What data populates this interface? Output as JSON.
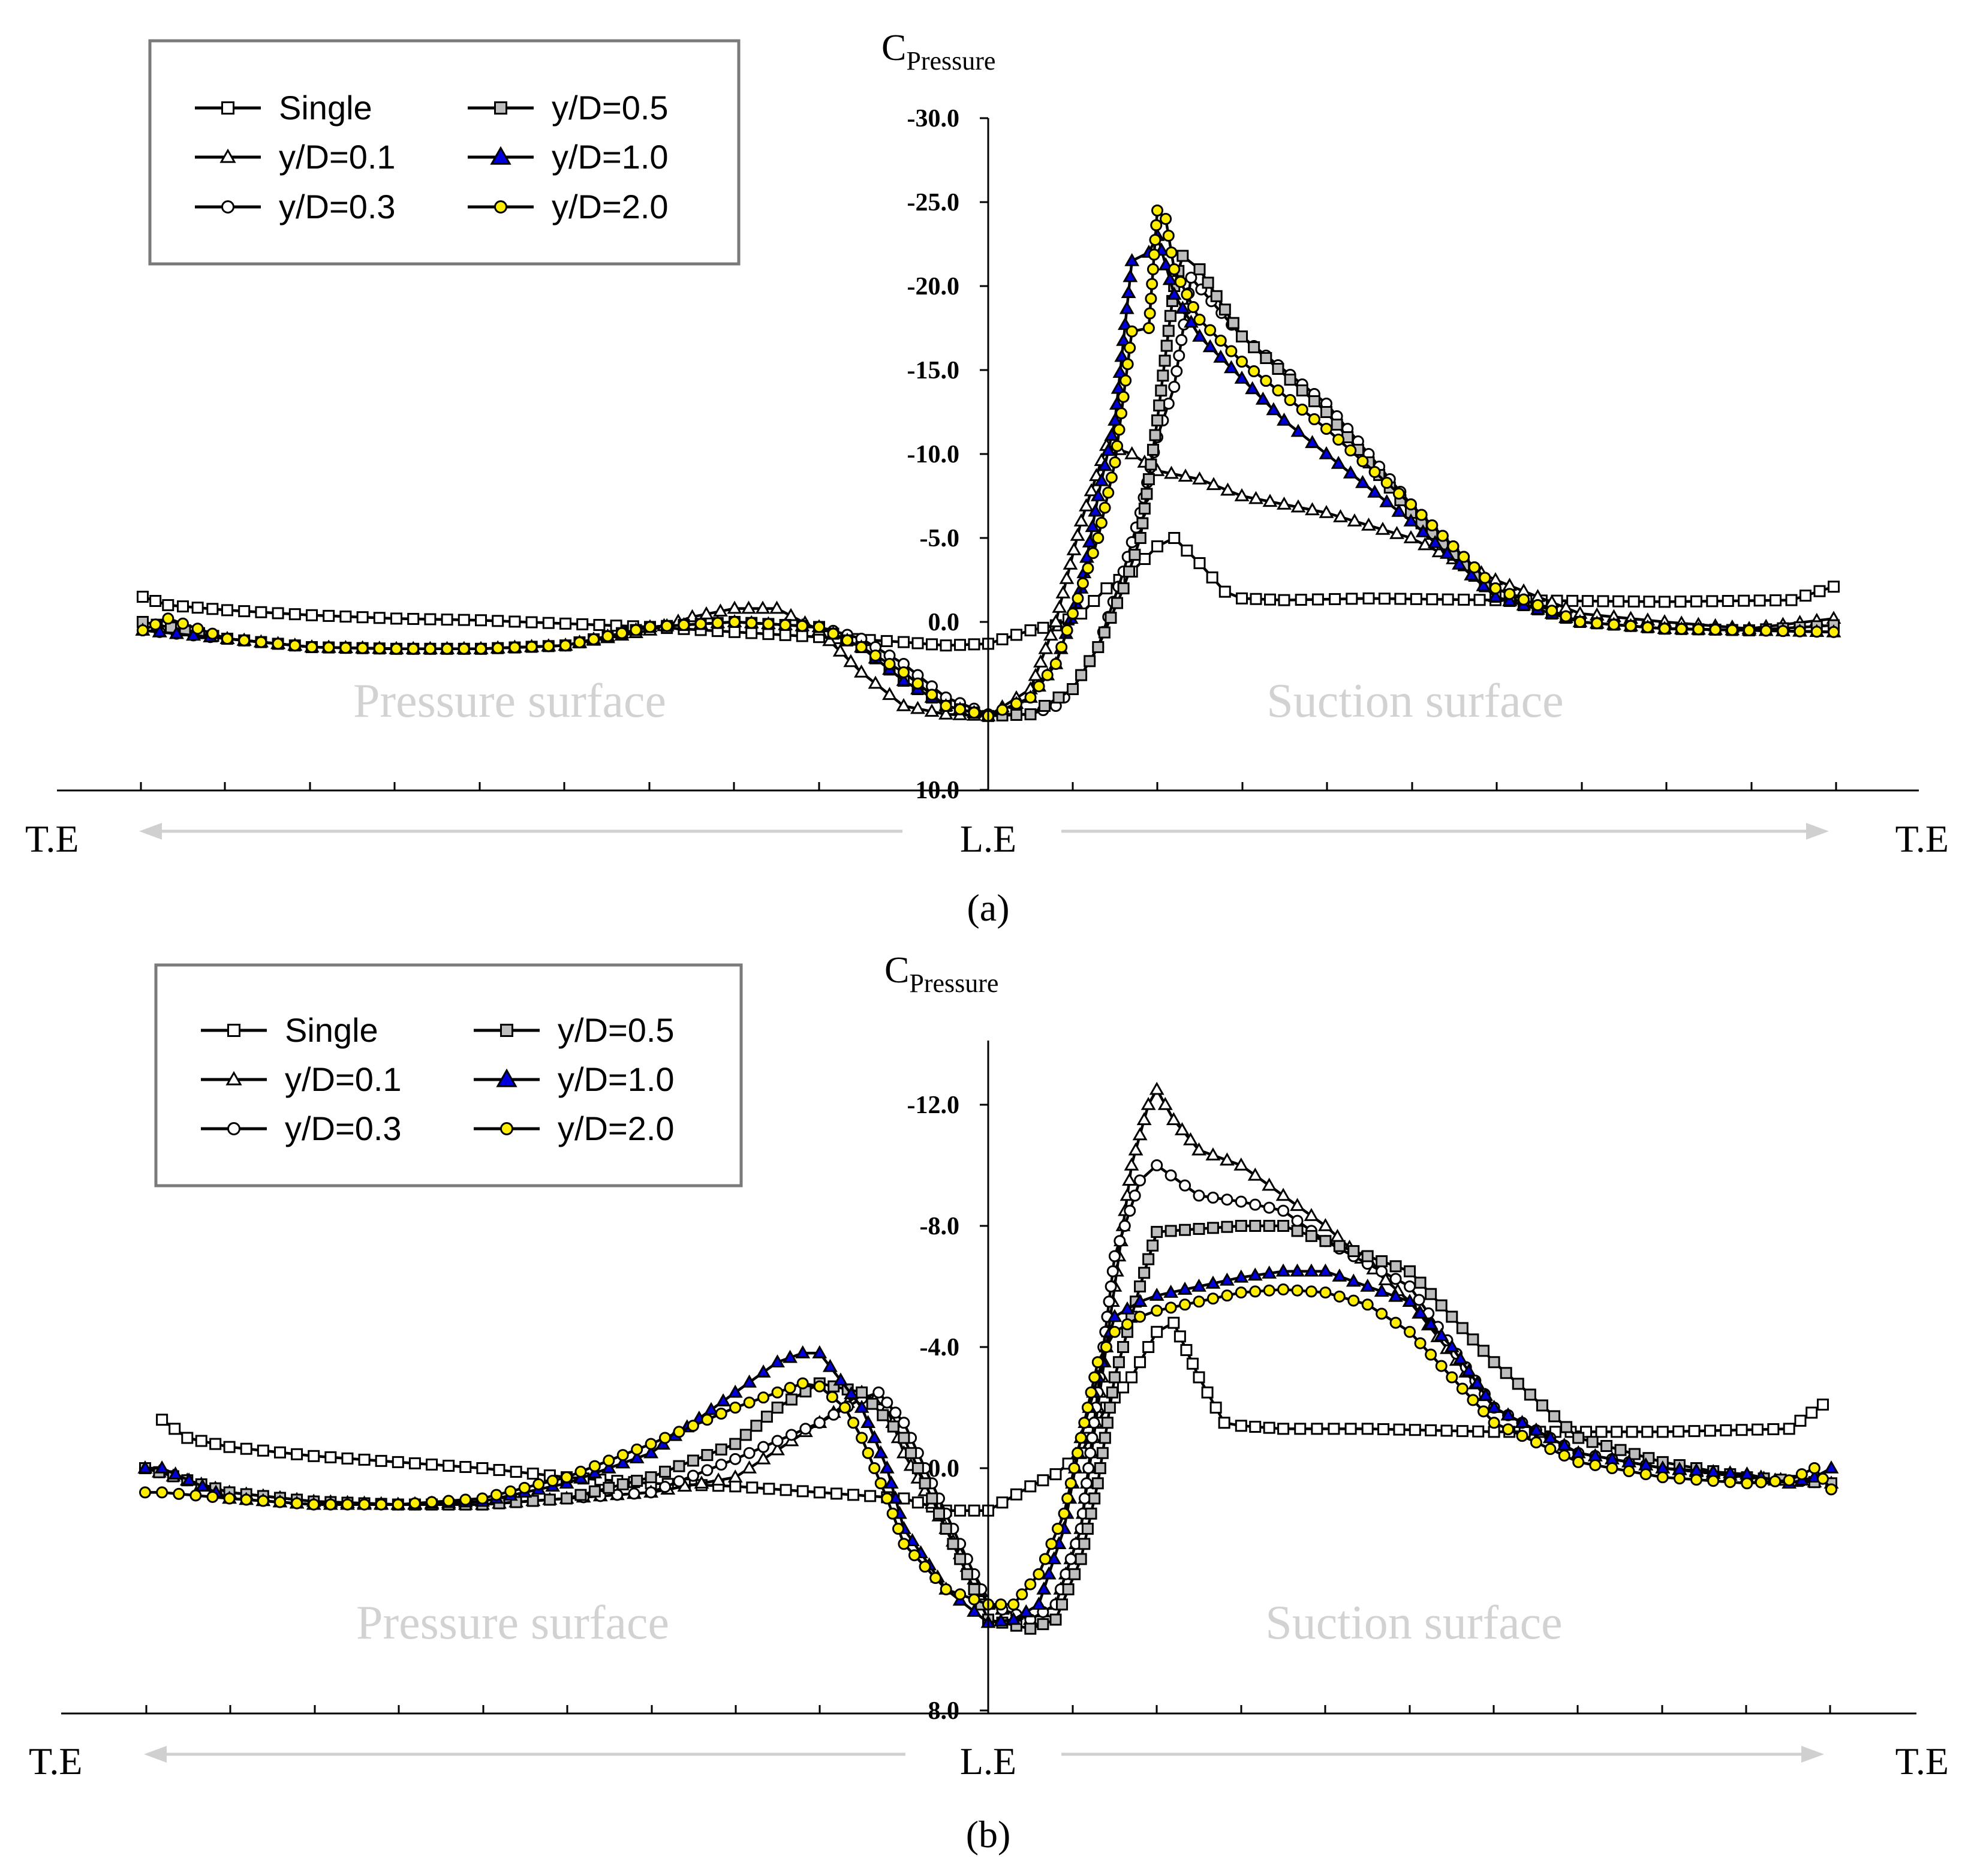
{
  "chart_data": [
    {
      "type": "line",
      "panel_label": "(a)",
      "ylabel": "C",
      "ylabel_sub": "Pressure",
      "y_axis_inverted": true,
      "ylim": [
        -30.0,
        10.0
      ],
      "yticks": [
        -30.0,
        -25.0,
        -20.0,
        -15.0,
        -10.0,
        -5.0,
        0.0,
        10.0
      ],
      "ytick_labels": [
        "-30.0",
        "-25.0",
        "-20.0",
        "-15.0",
        "-10.0",
        "-5.0",
        "0.0",
        "10.0"
      ],
      "xlim": [
        -1.1,
        1.1
      ],
      "x_axis_label_left": "T.E",
      "x_axis_label_center": "L.E",
      "x_axis_label_right": "T.E",
      "region_labels": [
        "Pressure surface",
        "Suction surface"
      ],
      "legend_position": "top-left",
      "series": [
        {
          "name": "Single",
          "marker": "square",
          "fill": "#ffffff",
          "x": [
            -1.0,
            -0.97,
            -0.9,
            -0.8,
            -0.7,
            -0.6,
            -0.5,
            -0.4,
            -0.3,
            -0.2,
            -0.1,
            -0.05,
            0.0,
            0.05,
            0.08,
            0.11,
            0.14,
            0.17,
            0.2,
            0.22,
            0.25,
            0.28,
            0.3,
            0.35,
            0.45,
            0.6,
            0.8,
            0.95,
            1.0
          ],
          "y": [
            -1.5,
            -1.0,
            -0.7,
            -0.4,
            -0.2,
            -0.1,
            0.1,
            0.3,
            0.6,
            0.9,
            1.2,
            1.4,
            1.3,
            0.5,
            0.2,
            -0.5,
            -2.0,
            -3.0,
            -4.5,
            -5.0,
            -3.5,
            -1.8,
            -1.4,
            -1.3,
            -1.4,
            -1.3,
            -1.2,
            -1.3,
            -2.1
          ]
        },
        {
          "name": "y/D=0.1",
          "marker": "triangle",
          "fill": "#ffffff",
          "x": [
            -1.0,
            -0.9,
            -0.8,
            -0.7,
            -0.6,
            -0.5,
            -0.4,
            -0.35,
            -0.3,
            -0.25,
            -0.2,
            -0.15,
            -0.1,
            -0.05,
            0.0,
            0.05,
            0.08,
            0.11,
            0.14,
            0.17,
            0.2,
            0.25,
            0.3,
            0.4,
            0.5,
            0.6,
            0.7,
            0.8,
            0.9,
            1.0
          ],
          "y": [
            0.5,
            1.0,
            1.5,
            1.6,
            1.6,
            1.4,
            0.5,
            -0.3,
            -0.8,
            -0.8,
            0.5,
            3.0,
            5.0,
            5.5,
            5.6,
            4.0,
            0.0,
            -6.0,
            -10.5,
            -10.0,
            -9.0,
            -8.5,
            -7.5,
            -6.5,
            -5.0,
            -2.5,
            -0.5,
            0.0,
            0.4,
            -0.2
          ]
        },
        {
          "name": "y/D=0.3",
          "marker": "circle",
          "fill": "#ffffff",
          "x": [
            -1.0,
            -0.9,
            -0.8,
            -0.7,
            -0.6,
            -0.5,
            -0.4,
            -0.3,
            -0.2,
            -0.15,
            -0.1,
            -0.05,
            0.0,
            0.05,
            0.08,
            0.1,
            0.13,
            0.16,
            0.18,
            0.2,
            0.22,
            0.24,
            0.3,
            0.4,
            0.5,
            0.6,
            0.7,
            0.8,
            0.9,
            1.0
          ],
          "y": [
            0.5,
            1.0,
            1.5,
            1.6,
            1.6,
            1.4,
            0.3,
            0.0,
            0.3,
            1.0,
            2.5,
            4.5,
            5.5,
            5.5,
            5.0,
            4.0,
            1.5,
            -3.0,
            -6.5,
            -11.0,
            -14.0,
            -20.5,
            -17.0,
            -13.0,
            -7.0,
            -2.0,
            0.0,
            0.4,
            0.5,
            0.6
          ]
        },
        {
          "name": "y/D=0.5",
          "marker": "square",
          "fill": "#bdbdbd",
          "x": [
            -1.0,
            -0.9,
            -0.8,
            -0.7,
            -0.6,
            -0.5,
            -0.4,
            -0.3,
            -0.2,
            -0.15,
            -0.1,
            -0.05,
            0.0,
            0.05,
            0.1,
            0.13,
            0.16,
            0.18,
            0.2,
            0.22,
            0.23,
            0.25,
            0.3,
            0.4,
            0.5,
            0.6,
            0.7,
            0.8,
            0.9,
            1.0
          ],
          "y": [
            0.0,
            1.0,
            1.5,
            1.6,
            1.6,
            1.4,
            0.3,
            0.0,
            0.3,
            1.5,
            3.5,
            5.0,
            5.6,
            5.5,
            4.0,
            1.5,
            -2.0,
            -5.0,
            -12.0,
            -20.0,
            -21.8,
            -21.0,
            -17.0,
            -12.5,
            -6.5,
            -1.5,
            0.0,
            0.4,
            0.5,
            0.2
          ]
        },
        {
          "name": "y/D=1.0",
          "marker": "triangle",
          "fill": "#0000dd",
          "x": [
            -1.0,
            -0.9,
            -0.8,
            -0.7,
            -0.6,
            -0.5,
            -0.4,
            -0.3,
            -0.2,
            -0.15,
            -0.1,
            -0.05,
            0.0,
            0.05,
            0.08,
            0.11,
            0.13,
            0.15,
            0.17,
            0.19,
            0.2,
            0.22,
            0.25,
            0.3,
            0.35,
            0.4,
            0.5,
            0.6,
            0.7,
            0.8,
            0.9,
            1.0
          ],
          "y": [
            0.5,
            1.0,
            1.5,
            1.6,
            1.6,
            1.4,
            0.3,
            0.0,
            0.3,
            1.5,
            3.5,
            5.0,
            5.6,
            4.5,
            2.5,
            -2.0,
            -7.5,
            -12.0,
            -21.5,
            -22.0,
            -23.0,
            -19.5,
            -17.0,
            -14.5,
            -12.0,
            -10.0,
            -6.0,
            -1.5,
            0.0,
            0.4,
            0.5,
            0.6
          ]
        },
        {
          "name": "y/D=2.0",
          "marker": "circle",
          "fill": "#ffee00",
          "x": [
            -1.0,
            -0.97,
            -0.9,
            -0.8,
            -0.7,
            -0.6,
            -0.5,
            -0.4,
            -0.3,
            -0.2,
            -0.15,
            -0.1,
            -0.05,
            0.0,
            0.05,
            0.08,
            0.1,
            0.13,
            0.15,
            0.17,
            0.19,
            0.2,
            0.21,
            0.22,
            0.25,
            0.3,
            0.4,
            0.5,
            0.6,
            0.7,
            0.8,
            0.9,
            1.0
          ],
          "y": [
            0.5,
            -0.2,
            1.0,
            1.5,
            1.6,
            1.6,
            1.4,
            0.3,
            0.0,
            0.3,
            1.5,
            3.0,
            5.0,
            5.6,
            4.5,
            2.5,
            -0.5,
            -5.0,
            -9.5,
            -17.3,
            -17.5,
            -24.5,
            -24.0,
            -21.0,
            -18.0,
            -15.5,
            -11.5,
            -7.0,
            -2.0,
            0.0,
            0.4,
            0.5,
            0.6
          ]
        }
      ]
    },
    {
      "type": "line",
      "panel_label": "(b)",
      "ylabel": "C",
      "ylabel_sub": "Pressure",
      "y_axis_inverted": true,
      "ylim": [
        -14.0,
        8.0
      ],
      "yticks": [
        -12.0,
        -8.0,
        -4.0,
        0.0,
        8.0
      ],
      "ytick_labels": [
        "-12.0",
        "-8.0",
        "-4.0",
        "0.0",
        "8.0"
      ],
      "xlim": [
        -1.1,
        1.1
      ],
      "x_axis_label_left": "T.E",
      "x_axis_label_center": "L.E",
      "x_axis_label_right": "T.E",
      "region_labels": [
        "Pressure surface",
        "Suction surface"
      ],
      "legend_position": "top-left",
      "series": [
        {
          "name": "Single",
          "marker": "square",
          "fill": "#ffffff",
          "x": [
            -0.98,
            -0.95,
            -0.9,
            -0.8,
            -0.7,
            -0.6,
            -0.5,
            -0.4,
            -0.3,
            -0.2,
            -0.1,
            -0.05,
            0.0,
            0.05,
            0.08,
            0.11,
            0.14,
            0.17,
            0.2,
            0.22,
            0.25,
            0.28,
            0.3,
            0.35,
            0.45,
            0.6,
            0.8,
            0.95,
            0.99
          ],
          "y": [
            -1.6,
            -1.0,
            -0.7,
            -0.4,
            -0.2,
            0.0,
            0.3,
            0.5,
            0.6,
            0.8,
            1.0,
            1.4,
            1.4,
            0.6,
            0.2,
            -0.5,
            -2.0,
            -3.0,
            -4.5,
            -4.8,
            -3.0,
            -1.5,
            -1.4,
            -1.3,
            -1.3,
            -1.2,
            -1.2,
            -1.3,
            -2.1
          ]
        },
        {
          "name": "y/D=0.1",
          "marker": "triangle",
          "fill": "#ffffff",
          "x": [
            -1.0,
            -0.9,
            -0.8,
            -0.7,
            -0.6,
            -0.5,
            -0.4,
            -0.3,
            -0.2,
            -0.15,
            -0.12,
            -0.1,
            -0.05,
            0.0,
            0.05,
            0.08,
            0.11,
            0.13,
            0.15,
            0.17,
            0.19,
            0.2,
            0.22,
            0.25,
            0.3,
            0.35,
            0.4,
            0.5,
            0.6,
            0.7,
            0.8,
            0.9,
            1.0
          ],
          "y": [
            0.0,
            0.8,
            1.1,
            1.2,
            1.2,
            1.0,
            0.8,
            0.3,
            -1.5,
            -2.5,
            -2.0,
            -0.5,
            2.0,
            4.5,
            5.0,
            4.5,
            2.0,
            -2.0,
            -6.0,
            -10.0,
            -12.0,
            -12.5,
            -11.5,
            -10.5,
            -10.0,
            -9.0,
            -8.0,
            -5.5,
            -2.0,
            -0.5,
            0.0,
            0.3,
            0.5
          ]
        },
        {
          "name": "y/D=0.3",
          "marker": "circle",
          "fill": "#ffffff",
          "x": [
            -1.0,
            -0.9,
            -0.8,
            -0.7,
            -0.6,
            -0.5,
            -0.4,
            -0.3,
            -0.2,
            -0.15,
            -0.13,
            -0.1,
            -0.05,
            0.0,
            0.05,
            0.08,
            0.11,
            0.13,
            0.15,
            0.18,
            0.2,
            0.25,
            0.3,
            0.35,
            0.4,
            0.5,
            0.6,
            0.7,
            0.8,
            0.9,
            1.0
          ],
          "y": [
            0.0,
            0.8,
            1.1,
            1.2,
            1.2,
            1.0,
            0.8,
            -0.3,
            -1.5,
            -2.3,
            -2.5,
            -1.5,
            1.5,
            4.5,
            5.0,
            4.5,
            2.0,
            -2.5,
            -7.0,
            -9.5,
            -10.0,
            -9.0,
            -8.8,
            -8.5,
            -7.5,
            -6.0,
            -2.0,
            -0.5,
            0.0,
            0.3,
            0.5
          ]
        },
        {
          "name": "y/D=0.5",
          "marker": "square",
          "fill": "#bdbdbd",
          "x": [
            -1.0,
            -0.9,
            -0.8,
            -0.7,
            -0.6,
            -0.5,
            -0.4,
            -0.3,
            -0.25,
            -0.2,
            -0.15,
            -0.1,
            -0.05,
            0.0,
            0.05,
            0.08,
            0.11,
            0.13,
            0.15,
            0.18,
            0.2,
            0.25,
            0.3,
            0.35,
            0.4,
            0.5,
            0.6,
            0.7,
            0.8,
            0.9,
            1.0
          ],
          "y": [
            0.0,
            0.8,
            1.1,
            1.2,
            1.2,
            1.0,
            0.3,
            -0.8,
            -2.0,
            -2.8,
            -2.5,
            -1.0,
            2.0,
            5.0,
            5.3,
            5.0,
            3.0,
            0.5,
            -3.0,
            -6.0,
            -7.8,
            -7.9,
            -8.0,
            -8.0,
            -7.5,
            -6.5,
            -3.5,
            -1.0,
            -0.2,
            0.3,
            0.5
          ]
        },
        {
          "name": "y/D=1.0",
          "marker": "triangle",
          "fill": "#0000dd",
          "x": [
            -1.0,
            -0.98,
            -0.9,
            -0.8,
            -0.7,
            -0.6,
            -0.5,
            -0.4,
            -0.3,
            -0.25,
            -0.22,
            -0.2,
            -0.15,
            -0.12,
            -0.1,
            -0.05,
            0.0,
            0.03,
            0.06,
            0.09,
            0.11,
            0.13,
            0.15,
            0.18,
            0.2,
            0.25,
            0.3,
            0.35,
            0.4,
            0.45,
            0.5,
            0.55,
            0.6,
            0.7,
            0.8,
            0.9,
            0.95,
            0.98,
            1.0
          ],
          "y": [
            0.0,
            0.0,
            1.0,
            1.2,
            1.2,
            1.1,
            0.5,
            -0.5,
            -2.5,
            -3.5,
            -3.8,
            -3.8,
            -2.0,
            0.0,
            2.0,
            4.0,
            5.1,
            5.0,
            4.5,
            2.0,
            -1.0,
            -3.0,
            -5.0,
            -5.5,
            -5.7,
            -6.0,
            -6.3,
            -6.5,
            -6.5,
            -6.0,
            -5.5,
            -4.0,
            -2.0,
            -0.5,
            0.0,
            0.2,
            0.5,
            0.3,
            0.0
          ]
        },
        {
          "name": "y/D=2.0",
          "marker": "circle",
          "fill": "#ffee00",
          "x": [
            -1.0,
            -0.98,
            -0.9,
            -0.8,
            -0.7,
            -0.6,
            -0.5,
            -0.4,
            -0.3,
            -0.25,
            -0.22,
            -0.2,
            -0.17,
            -0.15,
            -0.12,
            -0.1,
            -0.05,
            0.0,
            0.03,
            0.06,
            0.09,
            0.11,
            0.13,
            0.15,
            0.18,
            0.2,
            0.25,
            0.3,
            0.35,
            0.4,
            0.45,
            0.5,
            0.55,
            0.6,
            0.7,
            0.8,
            0.9,
            0.95,
            0.98,
            1.0
          ],
          "y": [
            0.8,
            0.8,
            1.0,
            1.2,
            1.2,
            1.0,
            0.3,
            -0.8,
            -2.0,
            -2.5,
            -2.8,
            -2.7,
            -2.0,
            -1.0,
            1.0,
            2.5,
            4.0,
            4.5,
            4.5,
            3.5,
            1.5,
            -1.0,
            -3.5,
            -4.5,
            -5.0,
            -5.2,
            -5.5,
            -5.8,
            -5.9,
            -5.8,
            -5.4,
            -4.5,
            -3.0,
            -1.5,
            -0.2,
            0.3,
            0.5,
            0.4,
            0.0,
            0.7
          ]
        }
      ]
    }
  ]
}
